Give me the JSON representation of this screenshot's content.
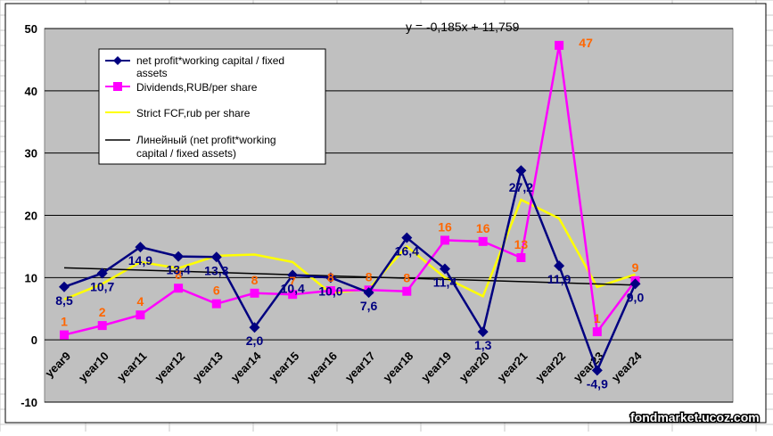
{
  "chart_data": {
    "type": "line",
    "categories": [
      "year9",
      "year10",
      "year11",
      "year12",
      "year13",
      "year14",
      "year15",
      "year16",
      "year17",
      "year18",
      "year19",
      "year20",
      "year21",
      "year22",
      "year23",
      "year24"
    ],
    "ylim": [
      -10,
      50
    ],
    "yticks": [
      "50",
      "40",
      "30",
      "20",
      "10",
      "0",
      "-10"
    ],
    "title": "",
    "xlabel": "",
    "ylabel": "",
    "trend_equation": "y = -0,185x + 11,759",
    "watermark": "fondmarket.ucoz.com",
    "plot_bg": "#c0c0c0",
    "grid": true,
    "legend_position": "top-left",
    "series": [
      {
        "name": "net profit*working capital / fixed assets",
        "color": "#000080",
        "marker": "diamond",
        "values": [
          8.5,
          10.7,
          14.9,
          13.4,
          13.3,
          2.0,
          10.4,
          10.0,
          7.6,
          16.4,
          11.4,
          1.3,
          27.2,
          11.9,
          -4.9,
          9.0
        ],
        "labels": [
          "8,5",
          "10,7",
          "14,9",
          "13,4",
          "13,3",
          "2,0",
          "10,4",
          "10,0",
          "7,6",
          "16,4",
          "11,4",
          "1,3",
          "27,2",
          "11,9",
          "-4,9",
          "9,0"
        ],
        "label_color": "#000080"
      },
      {
        "name": "Dividends,RUB/per share",
        "color": "#ff00ff",
        "marker": "square",
        "values": [
          0.8,
          2.3,
          4.0,
          8.3,
          5.8,
          7.5,
          7.3,
          7.9,
          8.0,
          7.8,
          16.0,
          15.8,
          13.2,
          47.3,
          1.3,
          9.5
        ],
        "labels": [
          "1",
          "2",
          "4",
          "8",
          "6",
          "8",
          "7",
          "8",
          "8",
          "8",
          "16",
          "16",
          "13",
          "47",
          "1",
          "9"
        ],
        "label_color": "#ff6600"
      },
      {
        "name": "Strict FCF,rub per share",
        "color": "#ffff00",
        "marker": "none",
        "values": [
          6.5,
          9.0,
          12.5,
          11.5,
          13.5,
          13.7,
          12.5,
          7.5,
          8.2,
          15.0,
          10.0,
          7.0,
          22.5,
          19.5,
          8.5,
          10.5
        ]
      },
      {
        "name": "Линейный (net profit*working capital / fixed assets)",
        "color": "#000000",
        "marker": "none",
        "trend": {
          "slope": -0.185,
          "intercept": 11.759
        }
      }
    ]
  }
}
